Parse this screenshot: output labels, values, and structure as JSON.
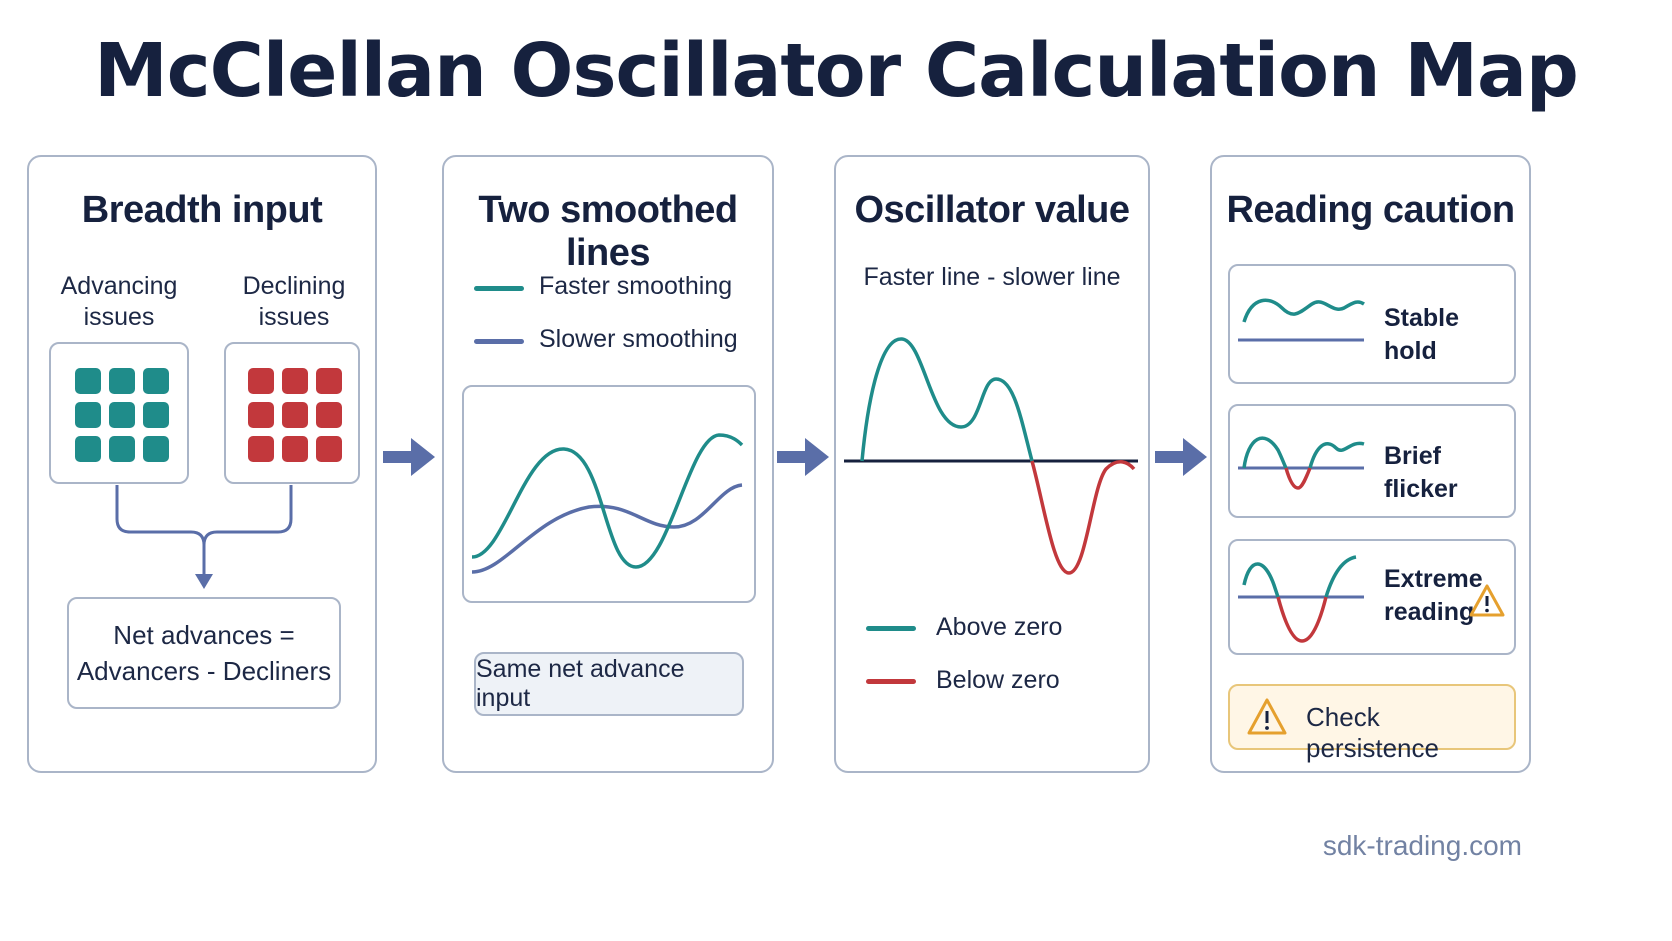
{
  "title": "McClellan Oscillator Calculation Map",
  "colors": {
    "teal": "#1f8c8a",
    "red": "#c2383c",
    "slate": "#5a6ea8",
    "navy": "#16213e",
    "amber": "#e5a02e"
  },
  "panels": {
    "breadth": {
      "title": "Breadth input",
      "advancing_label": "Advancing issues",
      "declining_label": "Declining issues",
      "net_line1": "Net advances =",
      "net_line2": "Advancers - Decliners"
    },
    "smoothed": {
      "title": "Two smoothed lines",
      "faster_label": "Faster smoothing",
      "slower_label": "Slower smoothing",
      "input_label": "Same net advance input"
    },
    "oscillator": {
      "title": "Oscillator value",
      "formula": "Faster line - slower line",
      "above_label": "Above zero",
      "below_label": "Below zero"
    },
    "caution": {
      "title": "Reading caution",
      "items": [
        {
          "label": "Stable hold"
        },
        {
          "label": "Brief flicker"
        },
        {
          "label_line1": "Extreme",
          "label_line2": "reading"
        }
      ],
      "persistence_label": "Check persistence"
    }
  },
  "footer": "sdk-trading.com"
}
